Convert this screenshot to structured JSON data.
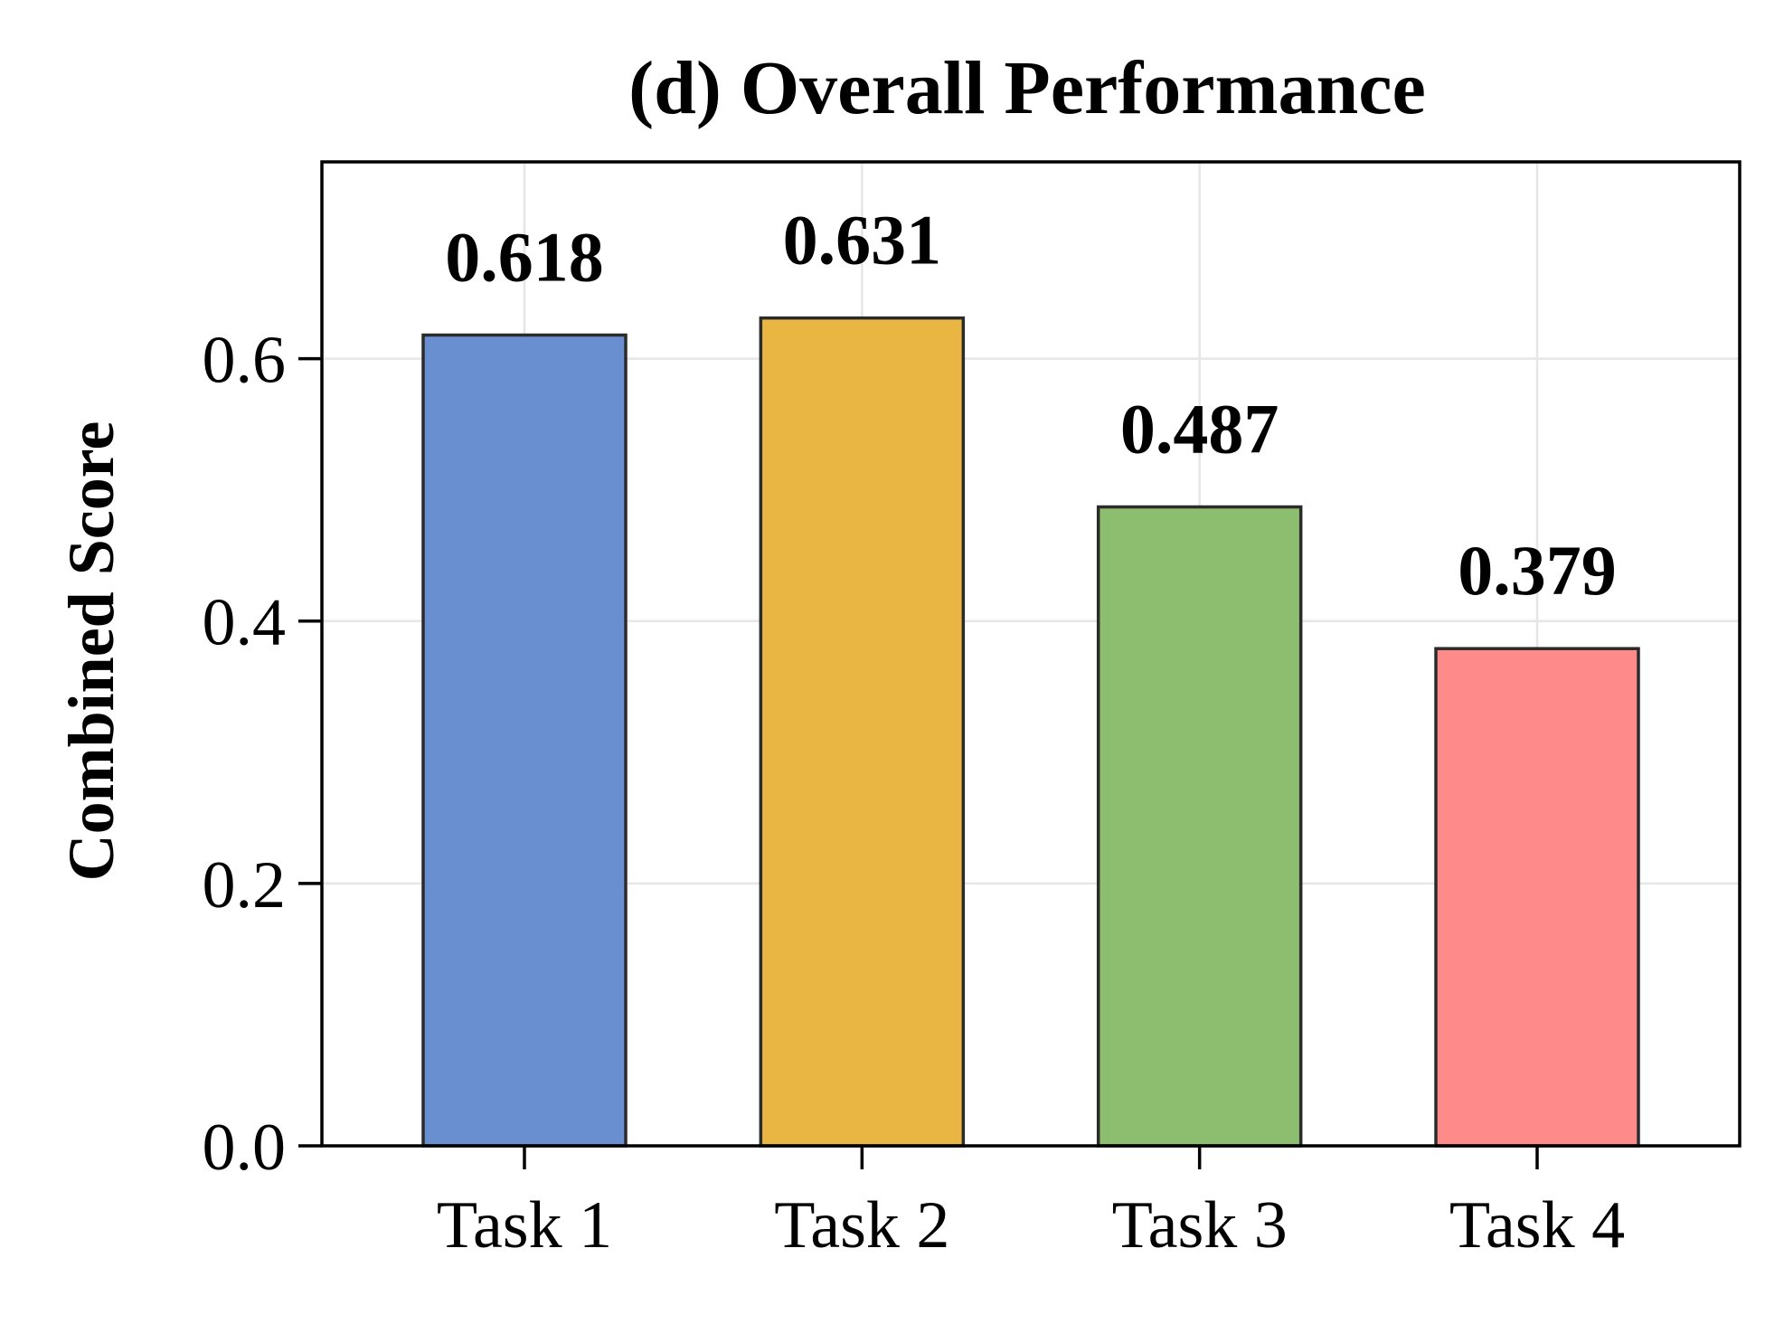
{
  "chart_data": {
    "type": "bar",
    "title": "(d) Overall Performance",
    "xlabel": "",
    "ylabel": "Combined Score",
    "categories": [
      "Task 1",
      "Task 2",
      "Task 3",
      "Task 4"
    ],
    "values": [
      0.618,
      0.631,
      0.487,
      0.379
    ],
    "value_labels": [
      "0.618",
      "0.631",
      "0.487",
      "0.379"
    ],
    "colors": [
      "#6a8fd0",
      "#e9b643",
      "#8dbd6e",
      "#ff8a8a"
    ],
    "ylim": [
      0,
      0.75
    ],
    "yticks": [
      0.0,
      0.2,
      0.4,
      0.6
    ],
    "ytick_labels": [
      "0.0",
      "0.2",
      "0.4",
      "0.6"
    ],
    "grid": true,
    "legend": "none"
  }
}
